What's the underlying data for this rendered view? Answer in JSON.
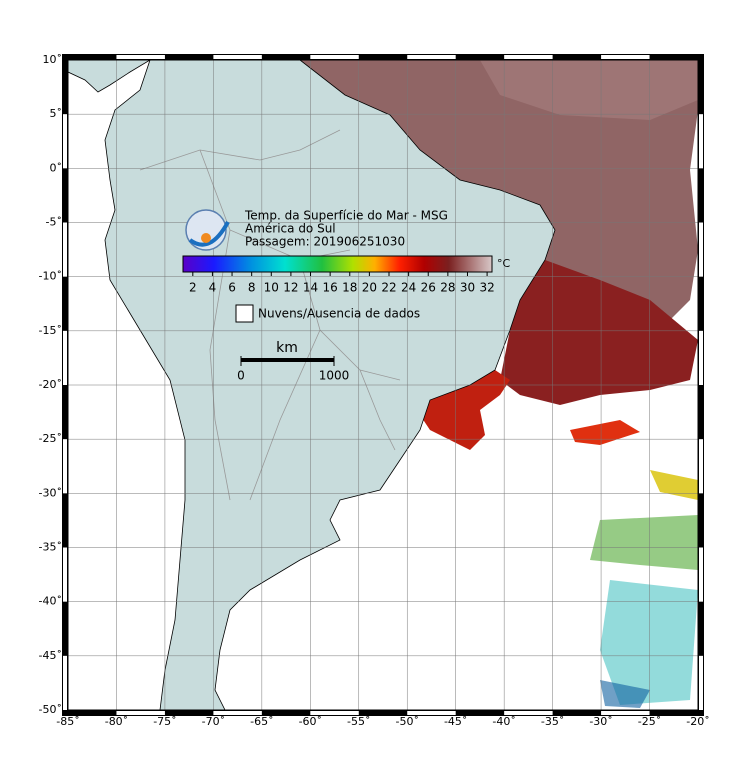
{
  "map": {
    "title_lines": [
      "Temp. da Superfície do Mar - MSG",
      "América do Sul",
      "Passagem: 201906251030"
    ],
    "colorbar": {
      "lim": [
        1,
        32.5
      ],
      "ticks": [
        2,
        4,
        6,
        8,
        10,
        12,
        14,
        16,
        18,
        20,
        22,
        24,
        26,
        28,
        30,
        32
      ],
      "unit": "°C"
    },
    "no_data_label": "Nuvens/Ausencia de dados",
    "scale_bar": {
      "unit": "km",
      "ticks": [
        0,
        1000
      ]
    },
    "xlim": [
      -85,
      -20
    ],
    "ylim": [
      -50,
      10
    ],
    "xticks": [
      {
        "value": -85,
        "label": "-85˚"
      },
      {
        "value": -80,
        "label": "-80˚"
      },
      {
        "value": -75,
        "label": "-75˚"
      },
      {
        "value": -70,
        "label": "-70˚"
      },
      {
        "value": -65,
        "label": "-65˚"
      },
      {
        "value": -60,
        "label": "-60˚"
      },
      {
        "value": -55,
        "label": "-55˚"
      },
      {
        "value": -50,
        "label": "-50˚"
      },
      {
        "value": -45,
        "label": "-45˚"
      },
      {
        "value": -40,
        "label": "-40˚"
      },
      {
        "value": -35,
        "label": "-35˚"
      },
      {
        "value": -30,
        "label": "-30˚"
      },
      {
        "value": -25,
        "label": "-25˚"
      },
      {
        "value": -20,
        "label": "-20˚"
      }
    ],
    "yticks": [
      {
        "value": 10,
        "label": "10˚"
      },
      {
        "value": 5,
        "label": "5˚"
      },
      {
        "value": 0,
        "label": "0˚"
      },
      {
        "value": -5,
        "label": "-5˚"
      },
      {
        "value": -10,
        "label": "-10˚"
      },
      {
        "value": -15,
        "label": "-15˚"
      },
      {
        "value": -20,
        "label": "-20˚"
      },
      {
        "value": -25,
        "label": "-25˚"
      },
      {
        "value": -30,
        "label": "-30˚"
      },
      {
        "value": -35,
        "label": "-35˚"
      },
      {
        "value": -40,
        "label": "-40˚"
      },
      {
        "value": -45,
        "label": "-45˚"
      },
      {
        "value": -50,
        "label": "-50˚"
      }
    ]
  }
}
